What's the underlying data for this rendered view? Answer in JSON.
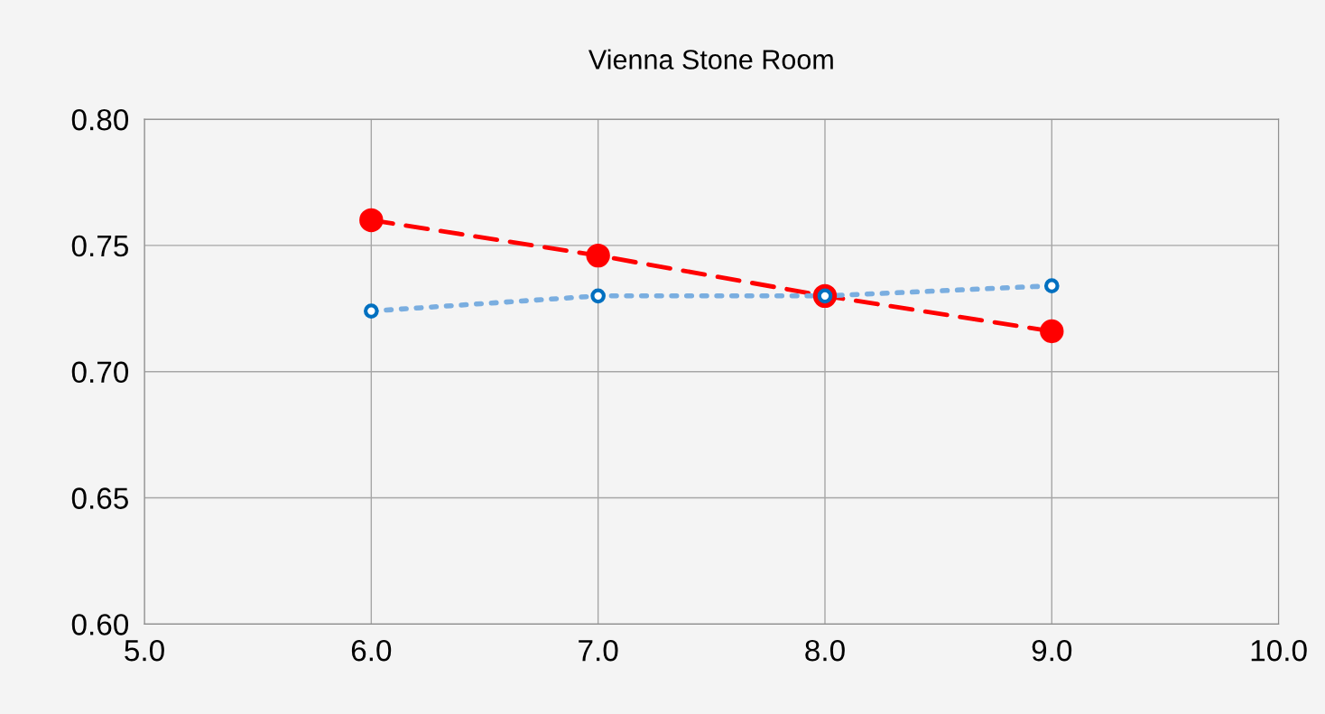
{
  "chart_data": {
    "type": "line",
    "title": "Vienna Stone Room",
    "x": [
      6,
      7,
      8,
      9
    ],
    "series": [
      {
        "color": "#ff0000",
        "values": [
          0.76,
          0.746,
          0.73,
          0.716
        ],
        "line_style": "dashed",
        "marker": "circle"
      },
      {
        "color": "#0070c0",
        "values": [
          0.724,
          0.73,
          0.73,
          0.734
        ],
        "line_style": "dotted",
        "marker": "circle"
      }
    ],
    "xlim": [
      5,
      10
    ],
    "xticks": [
      {
        "value": 5,
        "label": "5.0"
      },
      {
        "value": 6,
        "label": "6.0"
      },
      {
        "value": 7,
        "label": "7.0"
      },
      {
        "value": 8,
        "label": "8.0"
      },
      {
        "value": 9,
        "label": "9.0"
      },
      {
        "value": 10,
        "label": "10.0"
      }
    ],
    "ylim": [
      0.6,
      0.8
    ],
    "yticks": [
      {
        "value": 0.6,
        "label": "0.60"
      },
      {
        "value": 0.65,
        "label": "0.65"
      },
      {
        "value": 0.7,
        "label": "0.70"
      },
      {
        "value": 0.75,
        "label": "0.75"
      },
      {
        "value": 0.8,
        "label": "0.80"
      }
    ],
    "grid": true,
    "legend": false
  }
}
